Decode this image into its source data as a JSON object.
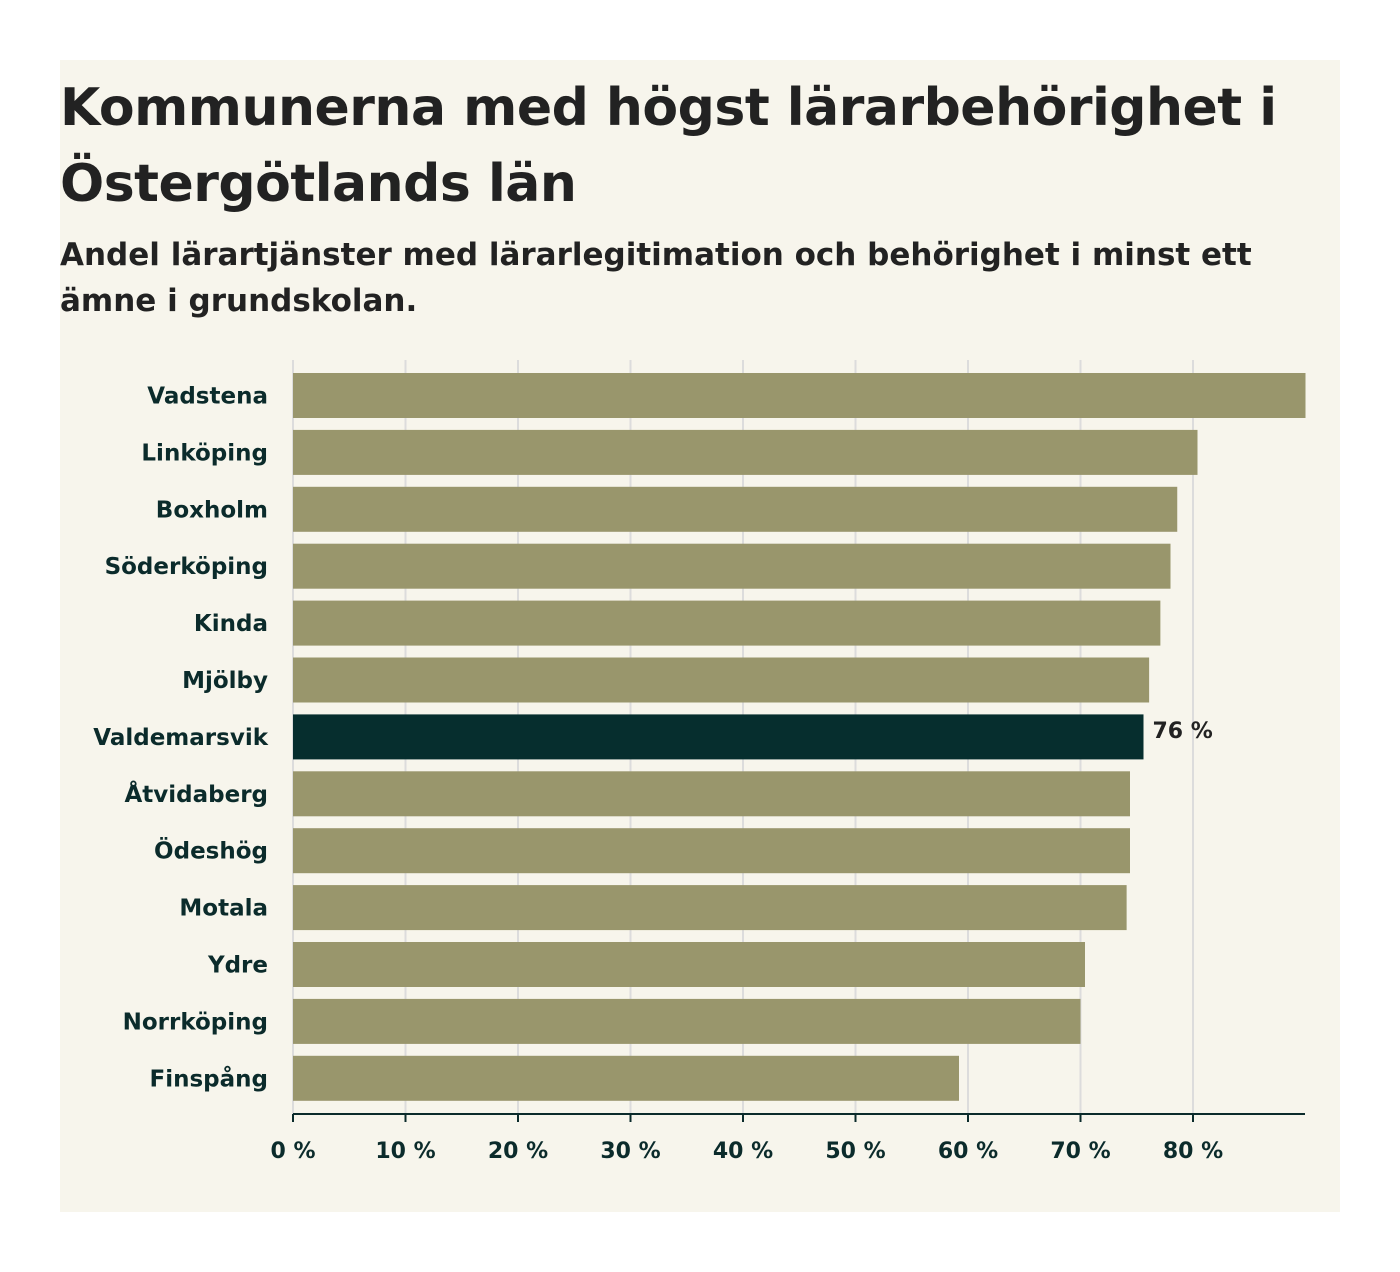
{
  "chart_data": {
    "type": "bar",
    "orientation": "horizontal",
    "title": "Kommunerna med högst lärarbehörighet i Östergötlands län",
    "subtitle": "Andel lärartjänster med lärarlegitimation och behörighet i minst ett ämne i grundskolan.",
    "xlabel": "",
    "ylabel": "",
    "xlim": [
      0,
      90
    ],
    "grid": true,
    "ticks": [
      0,
      10,
      20,
      30,
      40,
      50,
      60,
      70,
      80
    ],
    "tick_labels": [
      "0 %",
      "10 %",
      "20 %",
      "30 %",
      "40 %",
      "50 %",
      "60 %",
      "70 %",
      "80 %"
    ],
    "categories": [
      "Vadstena",
      "Linköping",
      "Boxholm",
      "Söderköping",
      "Kinda",
      "Mjölby",
      "Valdemarsvik",
      "Åtvidaberg",
      "Ödeshög",
      "Motala",
      "Ydre",
      "Norrköping",
      "Finspång"
    ],
    "values": [
      90,
      80.4,
      78.6,
      78.0,
      77.1,
      76.1,
      75.6,
      74.4,
      74.4,
      74.1,
      70.4,
      70.0,
      59.2
    ],
    "highlight": {
      "category": "Valdemarsvik",
      "label": "76 %"
    },
    "colors": {
      "bar": "#99966c",
      "highlight": "#062e2e",
      "grid": "#dcdcdc",
      "axis": "#0b2b2b"
    }
  }
}
